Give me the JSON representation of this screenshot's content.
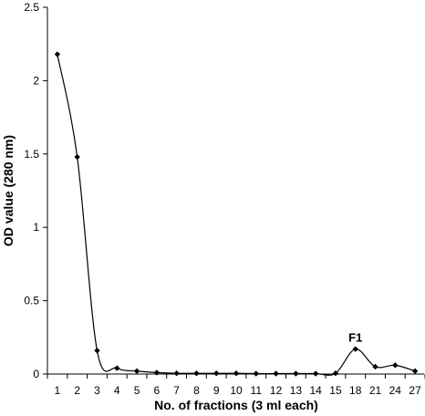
{
  "chart_data": {
    "type": "line",
    "title": "",
    "xlabel": "No. of fractions (3 ml each)",
    "ylabel": "OD value (280 nm)",
    "categories": [
      "1",
      "2",
      "3",
      "4",
      "5",
      "6",
      "7",
      "8",
      "9",
      "10",
      "11",
      "12",
      "13",
      "14",
      "15",
      "18",
      "21",
      "24",
      "27"
    ],
    "series": [
      {
        "values": [
          2.18,
          1.48,
          0.16,
          0.04,
          0.02,
          0.01,
          0.005,
          0.005,
          0.005,
          0.005,
          0.003,
          0.003,
          0.003,
          0.003,
          0.005,
          0.17,
          0.05,
          0.06,
          0.02
        ],
        "color": "#000000",
        "marker": "diamond",
        "smooth": true
      }
    ],
    "ylim": [
      0,
      2.5
    ],
    "yticks": [
      "0",
      "0.5",
      "1",
      "1.5",
      "2",
      "2.5"
    ],
    "annotations": [
      {
        "text": "F1",
        "category": "18"
      }
    ],
    "grid": false,
    "legend": "none"
  }
}
